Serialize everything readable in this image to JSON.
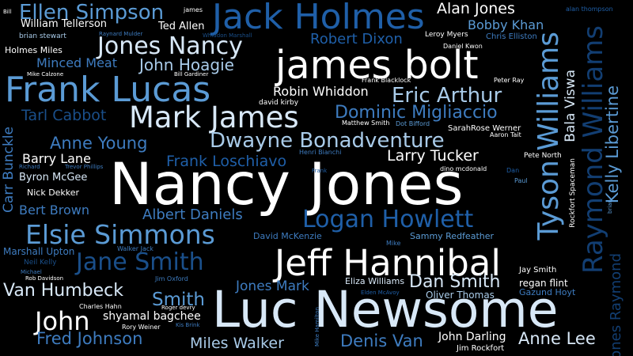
{
  "colors": {
    "background": "#000000",
    "white": "#ffffff",
    "pale": "#d8e8f7",
    "light": "#a9cbe9",
    "mid": "#5b9bd5",
    "steel": "#3e7cc0",
    "blue": "#1f5fa8",
    "dark": "#1a4f8a",
    "navy": "#123e72"
  },
  "words": [
    {
      "text": "Nancy Jones"
    },
    {
      "text": "Luc Newsome"
    },
    {
      "text": "james bolt"
    },
    {
      "text": "Jeff Hannibal"
    },
    {
      "text": "Jack Holmes"
    },
    {
      "text": "Frank Lucas"
    },
    {
      "text": "Mark James"
    },
    {
      "text": "Jones Nancy"
    },
    {
      "text": "Logan Howlett"
    },
    {
      "text": "Elsie Simmons"
    },
    {
      "text": "Jane Smith"
    },
    {
      "text": "Dwayne Bonadventure"
    },
    {
      "text": "Ellen Simpson"
    },
    {
      "text": "Eric Arthur"
    },
    {
      "text": "Dominic Migliaccio"
    },
    {
      "text": "Van Humbeck"
    },
    {
      "text": "Dan Smith"
    },
    {
      "text": "John"
    },
    {
      "text": "Alan Jones"
    },
    {
      "text": "Bobby Khan"
    },
    {
      "text": "Anne Young"
    },
    {
      "text": "Frank Loschiavo"
    },
    {
      "text": "Fred Johnson"
    },
    {
      "text": "Miles Walker"
    },
    {
      "text": "Denis Van"
    },
    {
      "text": "Anne Lee"
    },
    {
      "text": "Robert Dixon"
    },
    {
      "text": "John Hoagie"
    },
    {
      "text": "Larry Tucker"
    },
    {
      "text": "Tarl Cabbot"
    },
    {
      "text": "Smith"
    },
    {
      "text": "Albert Daniels"
    },
    {
      "text": "Jones Mark"
    },
    {
      "text": "Minced Meat"
    },
    {
      "text": "Robin Whiddon"
    },
    {
      "text": "Barry Lane"
    },
    {
      "text": "Bert Brown"
    },
    {
      "text": "John Darling"
    },
    {
      "text": "Byron McGee"
    },
    {
      "text": "shyamal bagchee"
    },
    {
      "text": "Ted Allen"
    },
    {
      "text": "William Tellerson"
    },
    {
      "text": "Holmes Miles"
    },
    {
      "text": "Eliza Williams"
    },
    {
      "text": "Oliver Thomas"
    },
    {
      "text": "Sammy Redfeather"
    },
    {
      "text": "David McKenzie"
    },
    {
      "text": "Nick Dekker"
    },
    {
      "text": "Marshall Upton"
    },
    {
      "text": "regan flint"
    },
    {
      "text": "Gazund Hoyt"
    },
    {
      "text": "Jay Smith"
    },
    {
      "text": "Jim Rockfort"
    },
    {
      "text": "Chris Elliston"
    },
    {
      "text": "Leroy Myers"
    },
    {
      "text": "Daniel Kwon"
    },
    {
      "text": "Peter Ray"
    },
    {
      "text": "Frank Blacklock"
    },
    {
      "text": "david kirby"
    },
    {
      "text": "Matthew Smith"
    },
    {
      "text": "Dot Bifford"
    },
    {
      "text": "SarahRose Werner"
    },
    {
      "text": "Aaron Tait"
    },
    {
      "text": "Pete North"
    },
    {
      "text": "Henri Bianchi"
    },
    {
      "text": "dino mcdonald"
    },
    {
      "text": "Dan"
    },
    {
      "text": "Paul"
    },
    {
      "text": "Frank"
    },
    {
      "text": "Mike"
    },
    {
      "text": "Richard"
    },
    {
      "text": "Trevor Phillips"
    },
    {
      "text": "Neil Kelly"
    },
    {
      "text": "Michael"
    },
    {
      "text": "Rob Davidson"
    },
    {
      "text": "Walker Jack"
    },
    {
      "text": "Jim Oxford"
    },
    {
      "text": "Roger devry"
    },
    {
      "text": "Kis Brink"
    },
    {
      "text": "Charles Hahn"
    },
    {
      "text": "Rory Weiner"
    },
    {
      "text": "Elden McAvoy"
    },
    {
      "text": "Mike Calzone"
    },
    {
      "text": "Bill Gardiner"
    },
    {
      "text": "Whiddon Marshall"
    },
    {
      "text": "Raynard Mulder"
    },
    {
      "text": "brian stewart"
    },
    {
      "text": "james"
    },
    {
      "text": "alan thompson"
    },
    {
      "text": "Bill"
    },
    {
      "text": "Tyson Williams"
    },
    {
      "text": "Raymond Williams"
    },
    {
      "text": "Kelly Libertine"
    },
    {
      "text": "Jones Raymond"
    },
    {
      "text": "Bala Viswa"
    },
    {
      "text": "Carr Bunckle"
    },
    {
      "text": "Rockfort Spaceman"
    },
    {
      "text": "Mike Hamilton"
    },
    {
      "text": "brian"
    }
  ]
}
